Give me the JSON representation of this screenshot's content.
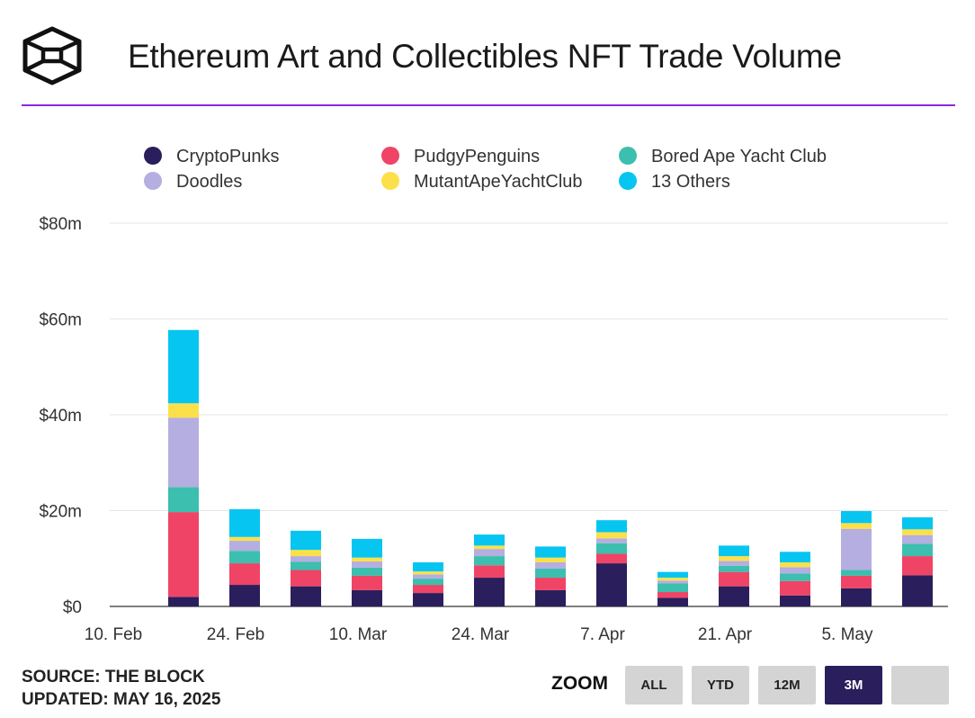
{
  "header": {
    "title": "Ethereum Art and Collectibles NFT Trade Volume"
  },
  "footer": {
    "source": "SOURCE: THE BLOCK",
    "updated": "UPDATED: MAY 16, 2025"
  },
  "zoom": {
    "label": "ZOOM",
    "buttons": [
      "ALL",
      "YTD",
      "12M",
      "3M",
      ""
    ],
    "active": "3M"
  },
  "chart_data": {
    "type": "bar",
    "stacked": true,
    "title": "Ethereum Art and Collectibles NFT Trade Volume",
    "ylim": [
      0,
      80
    ],
    "yticks": [
      0,
      20,
      40,
      60,
      80
    ],
    "ytick_labels": [
      "$0",
      "$20m",
      "$40m",
      "$60m",
      "$80m"
    ],
    "xtick_labels": [
      "10. Feb",
      "24. Feb",
      "10. Mar",
      "24. Mar",
      "7. Apr",
      "21. Apr",
      "5. May"
    ],
    "categories": [
      "17 Feb",
      "24 Feb",
      "3 Mar",
      "10 Mar",
      "17 Mar",
      "24 Mar",
      "31 Mar",
      "7 Apr",
      "14 Apr",
      "21 Apr",
      "28 Apr",
      "5 May",
      "12 May"
    ],
    "legend_position": "top",
    "series": [
      {
        "name": "CryptoPunks",
        "color": "#2a1f5c",
        "values": [
          2,
          4.5,
          4.2,
          3.4,
          2.8,
          6,
          3.4,
          9,
          1.8,
          4.2,
          2.3,
          3.8,
          6.5
        ]
      },
      {
        "name": "PudgyPenguins",
        "color": "#ef4466",
        "values": [
          17.7,
          4.5,
          3.4,
          3,
          1.7,
          2.6,
          2.6,
          2,
          1.2,
          3,
          3,
          2.6,
          4
        ]
      },
      {
        "name": "Bored Ape Yacht Club",
        "color": "#3cbfae",
        "values": [
          5.2,
          2.6,
          1.7,
          1.7,
          1.3,
          1.9,
          1.9,
          2.2,
          1.8,
          1.3,
          1.6,
          1.2,
          2.6
        ]
      },
      {
        "name": "Doodles",
        "color": "#b5aee0",
        "values": [
          14.5,
          2.1,
          1.2,
          1.3,
          0.9,
          1.5,
          1.3,
          1,
          0.6,
          1,
          1.3,
          8.6,
          1.8
        ]
      },
      {
        "name": "MutantApeYachtClub",
        "color": "#fbe04a",
        "values": [
          3,
          0.8,
          1.3,
          0.8,
          0.6,
          0.7,
          1,
          1.3,
          0.6,
          1,
          1,
          1.2,
          1.2
        ]
      },
      {
        "name": "13 Others",
        "color": "#06c5f1",
        "values": [
          15.3,
          5.8,
          4,
          3.9,
          1.9,
          2.3,
          2.3,
          2.5,
          1.2,
          2.2,
          2.2,
          2.5,
          2.5
        ]
      }
    ]
  }
}
